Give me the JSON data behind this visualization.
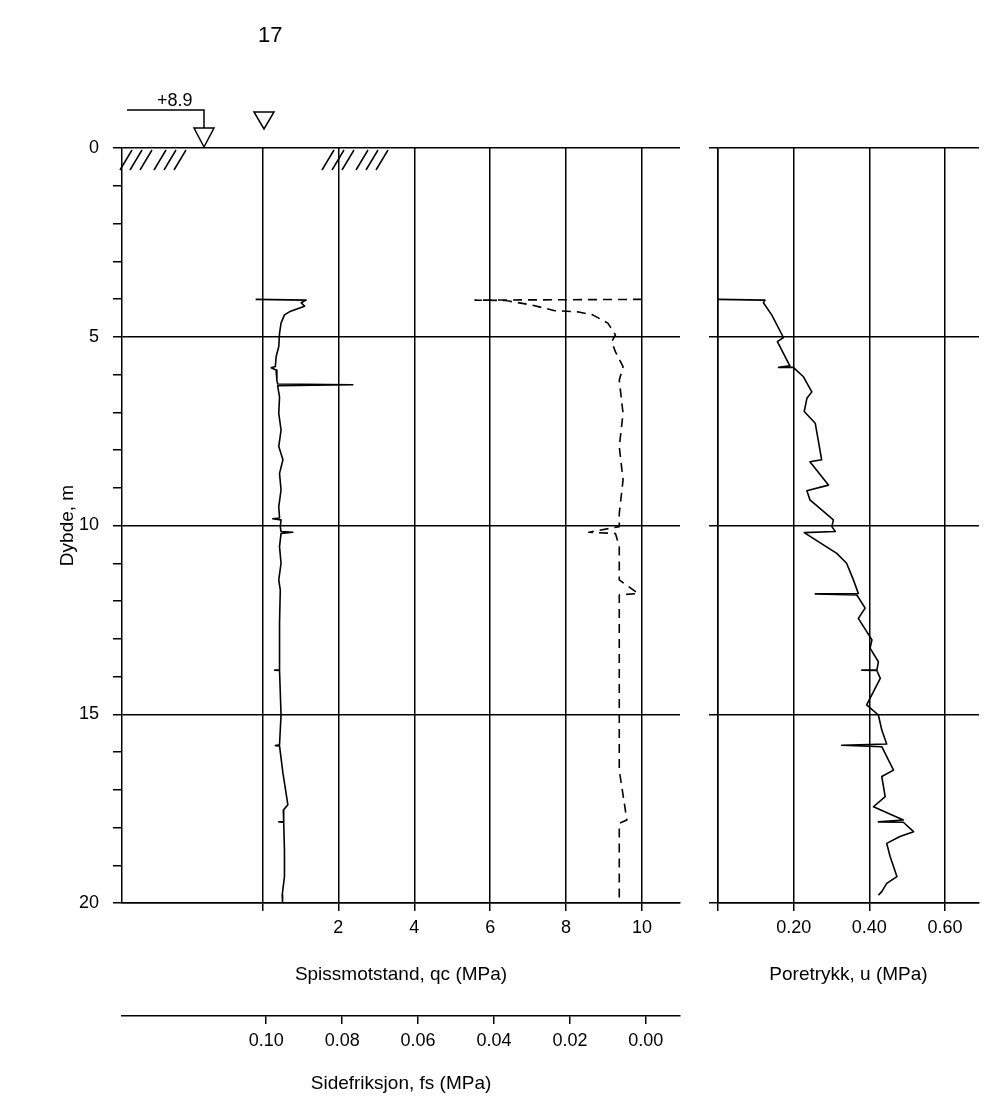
{
  "chart_data": [
    {
      "type": "line",
      "xlabel": "Spissmotstand, qc (MPa)",
      "x2label": "Sidefriksjon, fs (MPa)",
      "ylabel": "Dybde, m",
      "annotations": [
        "17",
        "+8.9"
      ],
      "xlim": [
        -3.7,
        11
      ],
      "xticks": [
        {
          "value": 0,
          "label": null
        },
        2,
        4,
        6,
        8,
        10
      ],
      "x2lim": [
        0.138,
        -0.009
      ],
      "x2ticks": [
        {
          "value": 0.1,
          "label": "0.10"
        },
        {
          "value": 0.08,
          "label": "0.08"
        },
        {
          "value": 0.06,
          "label": "0.06"
        },
        {
          "value": 0.04,
          "label": "0.04"
        },
        {
          "value": 0.02,
          "label": "0.02"
        },
        {
          "value": 0,
          "label": "0.00"
        }
      ],
      "ylim": [
        20,
        0
      ],
      "yticks": [
        0,
        {
          "value": 1,
          "label": null
        },
        {
          "value": 2,
          "label": null
        },
        {
          "value": 3,
          "label": null
        },
        {
          "value": 4,
          "label": null
        },
        5,
        {
          "value": 6,
          "label": null
        },
        {
          "value": 7,
          "label": null
        },
        {
          "value": 8,
          "label": null
        },
        {
          "value": 9,
          "label": null
        },
        10,
        {
          "value": 11,
          "label": null
        },
        {
          "value": 12,
          "label": null
        },
        {
          "value": 13,
          "label": null
        },
        {
          "value": 14,
          "label": null
        },
        15,
        {
          "value": 16,
          "label": null
        },
        {
          "value": 17,
          "label": null
        },
        {
          "value": 18,
          "label": null
        },
        {
          "value": 19,
          "label": null
        },
        20
      ],
      "grid": true,
      "marker": "none",
      "series": [
        {
          "color": "#000000",
          "x": [
            -0.18,
            1.15,
            1.02,
            1.11,
            0.89,
            0.71,
            0.58,
            0.49,
            0.45,
            0.43,
            0.36,
            0.34,
            0.23,
            0.36,
            0.38,
            0.4,
            2.38,
            0.4,
            0.45,
            0.43,
            0.49,
            0.43,
            0.54,
            0.45,
            0.49,
            0.43,
            0.45,
            0.27,
            0.49,
            0.47,
            0.49,
            0.8,
            0.49,
            0.45,
            0.49,
            0.43,
            0.47,
            0.45,
            0.45,
            0.32,
            0.45,
            0.49,
            0.45,
            0.34,
            0.45,
            0.54,
            0.67,
            0.55,
            0.56,
            0.43,
            0.56,
            0.58,
            0.58,
            0.52,
            0.53
          ],
          "values": [
            4.01,
            4.03,
            4.1,
            4.19,
            4.27,
            4.34,
            4.42,
            4.64,
            4.91,
            5.26,
            5.53,
            5.79,
            5.82,
            5.88,
            6.15,
            6.25,
            6.27,
            6.3,
            6.59,
            7.03,
            7.47,
            7.91,
            8.26,
            8.62,
            9.06,
            9.5,
            9.8,
            9.82,
            9.85,
            10.03,
            10.16,
            10.18,
            10.21,
            10.56,
            11.0,
            11.44,
            11.71,
            12.59,
            13.83,
            13.83,
            13.84,
            15.02,
            15.81,
            15.83,
            15.84,
            16.56,
            17.4,
            17.54,
            17.85,
            17.85,
            17.86,
            18.6,
            19.3,
            19.79,
            20.0
          ]
        },
        {
          "color": "#000000",
          "axis": "x2",
          "line_style": "dashed",
          "x": [
            0.001,
            0.045,
            0.037,
            0.03,
            0.024,
            0.018,
            0.014,
            0.01,
            0.008,
            0.009,
            0.008,
            0.006,
            0.007,
            0.006,
            0.007,
            0.006,
            0.007,
            0.007,
            0.015,
            0.008,
            0.007,
            0.007,
            0.002,
            0.007,
            0.007,
            0.007,
            0.007,
            0.007,
            0.005,
            0.007,
            0.007,
            0.007,
            0.007
          ],
          "values": [
            4.01,
            4.03,
            4.04,
            4.16,
            4.31,
            4.34,
            4.42,
            4.64,
            4.95,
            5.13,
            5.4,
            5.79,
            6.15,
            7.03,
            7.91,
            8.79,
            9.68,
            10.03,
            10.18,
            10.21,
            10.56,
            11.44,
            11.8,
            11.84,
            12.59,
            13.92,
            15.07,
            16.48,
            17.8,
            17.89,
            18.77,
            19.79,
            20.0
          ]
        }
      ]
    },
    {
      "type": "line",
      "xlabel": "Poretrykk, u (MPa)",
      "xlim": [
        0,
        0.69
      ],
      "xticks": [
        {
          "value": 0,
          "label": null
        },
        {
          "value": 0.2,
          "label": "0.20"
        },
        {
          "value": 0.4,
          "label": "0.40"
        },
        {
          "value": 0.6,
          "label": "0.60"
        }
      ],
      "ylim": [
        20,
        0
      ],
      "yticks": [
        0,
        5,
        10,
        15,
        20
      ],
      "tick_labels": "x",
      "grid": true,
      "marker": "none",
      "series": [
        {
          "color": "#000000",
          "x": [
            0,
            0.124,
            0.12,
            0.142,
            0.173,
            0.157,
            0.19,
            0.16,
            0.199,
            0.226,
            0.248,
            0.235,
            0.228,
            0.257,
            0.265,
            0.274,
            0.243,
            0.292,
            0.235,
            0.243,
            0.305,
            0.301,
            0.31,
            0.228,
            0.314,
            0.34,
            0.358,
            0.371,
            0.257,
            0.367,
            0.389,
            0.371,
            0.407,
            0.402,
            0.424,
            0.42,
            0.38,
            0.42,
            0.429,
            0.393,
            0.424,
            0.433,
            0.446,
            0.327,
            0.433,
            0.464,
            0.433,
            0.442,
            0.411,
            0.49,
            0.424,
            0.49,
            0.517,
            0.481,
            0.446,
            0.455,
            0.473,
            0.446,
            0.433,
            0.424
          ],
          "values": [
            4.01,
            4.03,
            4.1,
            4.42,
            5.02,
            5.13,
            5.77,
            5.81,
            5.81,
            6.06,
            6.46,
            6.63,
            6.98,
            7.29,
            7.74,
            8.26,
            8.31,
            8.93,
            9.08,
            9.32,
            9.85,
            10.03,
            10.16,
            10.19,
            10.74,
            11.0,
            11.44,
            11.8,
            11.81,
            11.84,
            12.19,
            12.46,
            13.03,
            13.25,
            13.61,
            13.83,
            13.83,
            13.84,
            14.05,
            14.75,
            15.02,
            15.42,
            15.79,
            15.82,
            15.86,
            16.48,
            16.65,
            17.18,
            17.45,
            17.8,
            17.85,
            17.86,
            18.11,
            18.24,
            18.42,
            18.77,
            19.3,
            19.48,
            19.7,
            19.79
          ]
        }
      ]
    }
  ]
}
